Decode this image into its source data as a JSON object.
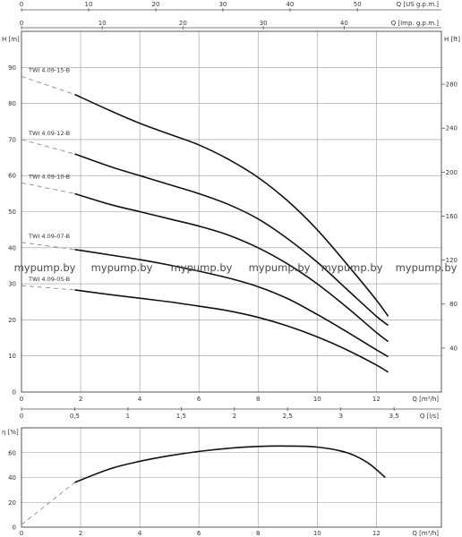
{
  "chart_data": [
    {
      "type": "line",
      "title": "",
      "xlabel": "Q [m³/h]",
      "ylabel": "H [m]",
      "xlim": [
        0,
        14.2
      ],
      "ylim": [
        0,
        100
      ],
      "x_ticks": [
        0,
        2,
        4,
        6,
        8,
        10,
        12
      ],
      "y_ticks": [
        0,
        10,
        20,
        30,
        40,
        50,
        60,
        70,
        80,
        90
      ],
      "grid": true,
      "secondary_axes": {
        "right": {
          "label": "H [ft]",
          "ticks": [
            "40",
            "80",
            "120",
            "160",
            "200",
            "240",
            "280"
          ],
          "tick_values_m": [
            12.19,
            24.38,
            36.58,
            48.77,
            60.96,
            73.15,
            85.34
          ]
        },
        "top_outer": {
          "label": "Q [US g.p.m.]",
          "ticks": [
            "0",
            "10",
            "20",
            "30",
            "40",
            "50"
          ],
          "tick_values_m3h": [
            0,
            2.27,
            4.54,
            6.81,
            9.08,
            11.36
          ]
        },
        "top_inner": {
          "label": "Q [Imp. g.p.m.]",
          "ticks": [
            "0",
            "10",
            "20",
            "30",
            "40"
          ],
          "tick_values_m3h": [
            0,
            2.73,
            5.46,
            8.18,
            10.91
          ]
        }
      },
      "series": [
        {
          "name": "TWI 4.09-15-B",
          "dashed_x": [
            0,
            1.8
          ],
          "dashed_y": [
            87.5,
            82.5
          ],
          "x": [
            1.8,
            3,
            4,
            5,
            6,
            7,
            8,
            9,
            10,
            11,
            12,
            12.4
          ],
          "y": [
            82.5,
            78.0,
            74.5,
            71.5,
            68.5,
            64.5,
            59.5,
            53.0,
            45.0,
            35.5,
            25.5,
            21.0
          ]
        },
        {
          "name": "TWI 4.09-12-B",
          "dashed_x": [
            0,
            1.8
          ],
          "dashed_y": [
            70.0,
            66.0
          ],
          "x": [
            1.8,
            3,
            4,
            5,
            6,
            7,
            8,
            9,
            10,
            11,
            12,
            12.4
          ],
          "y": [
            66.0,
            62.5,
            60.0,
            57.5,
            55.0,
            52.0,
            48.0,
            42.5,
            36.0,
            28.5,
            21.0,
            18.5
          ]
        },
        {
          "name": "TWI 4.09-10-B",
          "dashed_x": [
            0,
            1.8
          ],
          "dashed_y": [
            58.0,
            55.0
          ],
          "x": [
            1.8,
            3,
            4,
            5,
            6,
            7,
            8,
            9,
            10,
            11,
            12,
            12.4
          ],
          "y": [
            55.0,
            52.0,
            50.0,
            48.0,
            46.0,
            43.5,
            40.0,
            35.5,
            30.0,
            23.5,
            16.5,
            14.0
          ]
        },
        {
          "name": "TWI 4.09-07-B",
          "dashed_x": [
            0,
            1.8
          ],
          "dashed_y": [
            41.5,
            39.5
          ],
          "x": [
            1.8,
            3,
            4,
            5,
            6,
            7,
            8,
            9,
            10,
            11,
            12,
            12.4
          ],
          "y": [
            39.5,
            38.0,
            36.7,
            35.2,
            33.5,
            31.6,
            29.2,
            25.9,
            21.5,
            16.7,
            11.7,
            9.8
          ]
        },
        {
          "name": "TWI 4.09-05-B",
          "dashed_x": [
            0,
            1.8
          ],
          "dashed_y": [
            29.5,
            28.3
          ],
          "x": [
            1.8,
            3,
            4,
            5,
            6,
            7,
            8,
            9,
            10,
            11,
            12,
            12.4
          ],
          "y": [
            28.3,
            27.0,
            26.0,
            25.0,
            23.8,
            22.5,
            20.7,
            18.3,
            15.3,
            11.7,
            7.5,
            5.5
          ]
        }
      ]
    },
    {
      "type": "line",
      "title": "",
      "xlabel": "Q [m³/h]",
      "ylabel": "η [%]",
      "xlim": [
        0,
        14.2
      ],
      "ylim": [
        0,
        80
      ],
      "x_ticks": [
        0,
        2,
        4,
        6,
        8,
        10,
        12
      ],
      "y_ticks": [
        0,
        20,
        40,
        60
      ],
      "grid": true,
      "secondary_axes": {
        "top": {
          "label": "Q [l/s]",
          "ticks": [
            "0",
            "0,5",
            "1",
            "1,5",
            "2",
            "2,5",
            "3",
            "3,5"
          ],
          "tick_values_m3h": [
            0,
            1.8,
            3.6,
            5.4,
            7.2,
            9.0,
            10.8,
            12.6
          ]
        }
      },
      "series": [
        {
          "name": "η",
          "dashed_x": [
            0,
            1.8
          ],
          "dashed_y": [
            2.0,
            36.0
          ],
          "x": [
            1.8,
            3,
            4,
            5,
            6,
            7,
            8,
            9,
            10,
            11,
            11.7,
            12.3
          ],
          "y": [
            36.0,
            47.0,
            53.0,
            57.5,
            61.0,
            63.5,
            65.0,
            65.3,
            64.5,
            60.0,
            52.0,
            40.0
          ]
        }
      ]
    }
  ],
  "watermark": {
    "text": "mypump.by",
    "count": 5
  }
}
